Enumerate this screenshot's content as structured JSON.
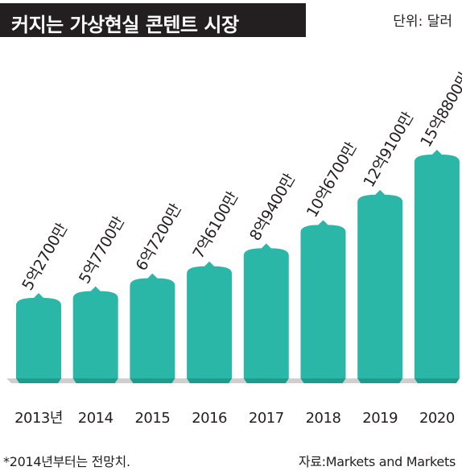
{
  "header": {
    "title": "커지는 가상현실 콘텐트 시장",
    "unit": "단위: 달러"
  },
  "footer": {
    "note": "*2014년부터는 전망치.",
    "source": "자료:Markets and Markets"
  },
  "colors": {
    "bar": "#2bb7a8",
    "bar_dark": "#1f9c8e",
    "title_bg": "#231f20",
    "base": "#cfcfcf"
  },
  "chart_data": {
    "type": "bar",
    "title": "커지는 가상현실 콘텐트 시장",
    "unit": "단위: 달러",
    "categories": [
      "2013년",
      "2014",
      "2015",
      "2016",
      "2017",
      "2018",
      "2019",
      "2020"
    ],
    "values": [
      527000000,
      577000000,
      672000000,
      761000000,
      894000000,
      1067000000,
      1291000000,
      1588000000
    ],
    "value_labels": [
      "5억2700만",
      "5억7700만",
      "6억7200만",
      "7억6100만",
      "8억9400만",
      "10억6700만",
      "12억9100만",
      "15억8800만"
    ],
    "grid": false,
    "legend": "none"
  }
}
